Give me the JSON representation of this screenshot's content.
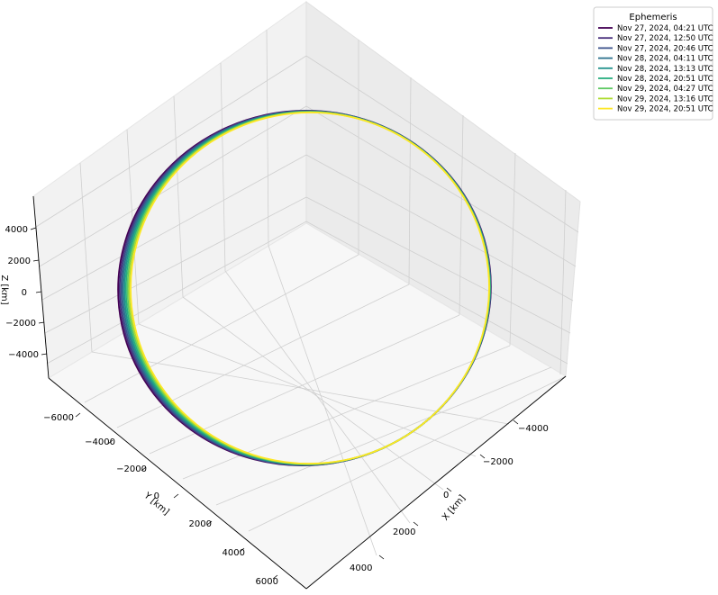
{
  "chart_data": {
    "type": "line",
    "projection": "3d",
    "title": "",
    "xlabel": "X [km]",
    "ylabel": "Y [km]",
    "zlabel": "Z [km]",
    "x_ticks": [
      "−4000",
      "−2000",
      "0",
      "2000",
      "4000"
    ],
    "y_ticks": [
      "−6000",
      "−4000",
      "−2000",
      "0",
      "2000",
      "4000",
      "6000"
    ],
    "z_ticks": [
      "4000",
      "2000",
      "0",
      "−2000",
      "−4000"
    ],
    "grid": true,
    "legend": {
      "title": "Ephemeris",
      "placement": "top-right",
      "entries": [
        {
          "label": "Nov 27, 2024, 04:21 UTC",
          "color": "#440154"
        },
        {
          "label": "Nov 27, 2024, 12:50 UTC",
          "color": "#472d7b"
        },
        {
          "label": "Nov 27, 2024, 20:46 UTC",
          "color": "#3b528b"
        },
        {
          "label": "Nov 28, 2024, 04:11 UTC",
          "color": "#2c728e"
        },
        {
          "label": "Nov 28, 2024, 13:13 UTC",
          "color": "#21918c"
        },
        {
          "label": "Nov 28, 2024, 20:51 UTC",
          "color": "#28ae80"
        },
        {
          "label": "Nov 29, 2024, 04:27 UTC",
          "color": "#5ec962"
        },
        {
          "label": "Nov 29, 2024, 13:16 UTC",
          "color": "#addc30"
        },
        {
          "label": "Nov 29, 2024, 20:51 UTC",
          "color": "#fde725"
        }
      ]
    }
  }
}
